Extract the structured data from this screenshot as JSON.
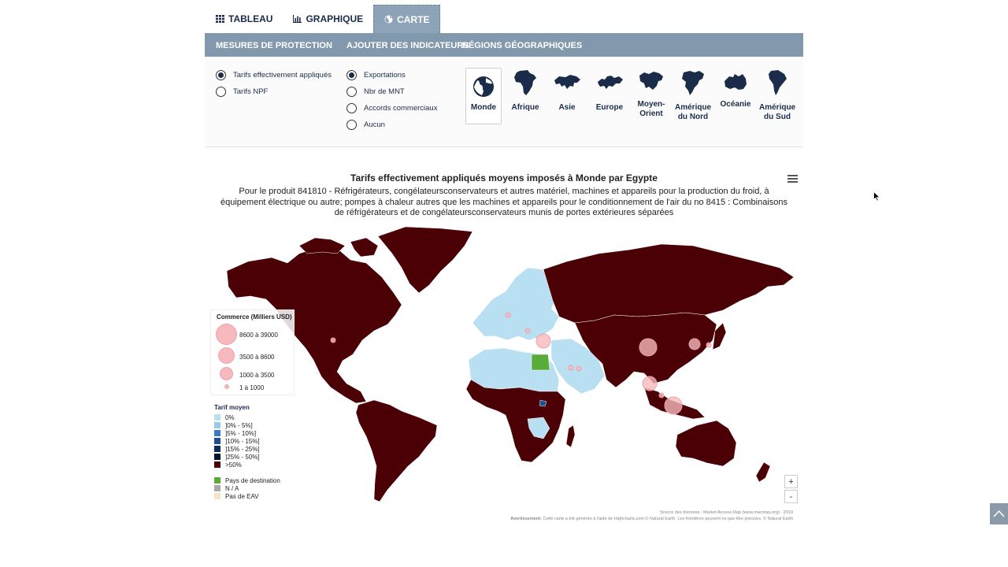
{
  "tabs": [
    {
      "label": "TABLEAU",
      "icon": "table-icon"
    },
    {
      "label": "GRAPHIQUE",
      "icon": "bar-chart-icon"
    },
    {
      "label": "CARTE",
      "icon": "globe-icon",
      "active": true
    }
  ],
  "menu": {
    "protection": "MESURES DE PROTECTION",
    "indicators": "AJOUTER DES INDICATEURS",
    "regions": "RÉGIONS GÉOGRAPHIQUES"
  },
  "tariff_options": [
    {
      "label": "Tarifs effectivement appliqués",
      "selected": true
    },
    {
      "label": "Tarifs NPF",
      "selected": false
    }
  ],
  "indicator_options": [
    {
      "label": "Exportations",
      "selected": true
    },
    {
      "label": "Nbr de MNT",
      "selected": false
    },
    {
      "label": "Accords commerciaux",
      "selected": false
    },
    {
      "label": "Aucun",
      "selected": false
    }
  ],
  "regions": [
    {
      "label": "Monde",
      "icon": "globe-icon",
      "selected": true
    },
    {
      "label": "Afrique",
      "icon": "africa-map-icon"
    },
    {
      "label": "Asie",
      "icon": "asia-map-icon"
    },
    {
      "label": "Europe",
      "icon": "europe-map-icon"
    },
    {
      "label": "Moyen-Orient",
      "icon": "middle-east-map-icon"
    },
    {
      "label": "Amérique du Nord",
      "icon": "north-america-map-icon"
    },
    {
      "label": "Océanie",
      "icon": "oceania-map-icon"
    },
    {
      "label": "Amérique du Sud",
      "icon": "south-america-map-icon"
    }
  ],
  "map": {
    "title": "Tarifs effectivement appliqués moyens imposés à Monde par Egypte",
    "subtitle": "Pour le produit 841810 - Réfrigérateurs, congélateursconservateurs et autres matériel, machines et appareils pour la production du froid, à équipement électrique ou autre; pompes à chaleur autres que les machines et appareils pour le conditionnement de l'air du no 8415 : Combinaisons de réfrigérateurs et de congélateursconservateurs munis de portes extérieures séparées",
    "colors": {
      "high": "#4a0004",
      "zero": "#b9dff2",
      "destination": "#5aac3a",
      "bubble": "#f6b9bd"
    }
  },
  "trade_legend": {
    "title": "Commerce (Milliers USD)",
    "items": [
      "8600 à 39000",
      "3500 à 8600",
      "1000 à 3500",
      "1 à 1000"
    ]
  },
  "tariff_legend": {
    "title": "Tarif moyen",
    "items": [
      {
        "label": "0%",
        "color": "#b9dff2"
      },
      {
        "label": "]0% - 5%]",
        "color": "#9cc8ea"
      },
      {
        "label": "]5% - 10%]",
        "color": "#3a7cc0"
      },
      {
        "label": "]10% - 15%]",
        "color": "#1d4f8c"
      },
      {
        "label": "]15% - 25%]",
        "color": "#0d2c5c"
      },
      {
        "label": "]25% - 50%]",
        "color": "#06162e"
      },
      {
        "label": ">50%",
        "color": "#4a0004"
      }
    ],
    "extra": [
      {
        "label": "Pays de destination",
        "color": "#5aac3a"
      },
      {
        "label": "N / A",
        "color": "#a8a8a8"
      },
      {
        "label": "Pas de EAV",
        "color": "#f7e3c8"
      }
    ]
  },
  "zoom": {
    "in": "+",
    "out": "-"
  },
  "credits": {
    "source": "Source des données : Market Access Map (www.macmap.org) - 2019",
    "warning_label": "Avertissement:",
    "warning_text": " Cette carte a été générée à l'aide de Highcharts.com © Natural Earth. Les frontières peuvent ne pas être précises. © Natural Earth"
  }
}
